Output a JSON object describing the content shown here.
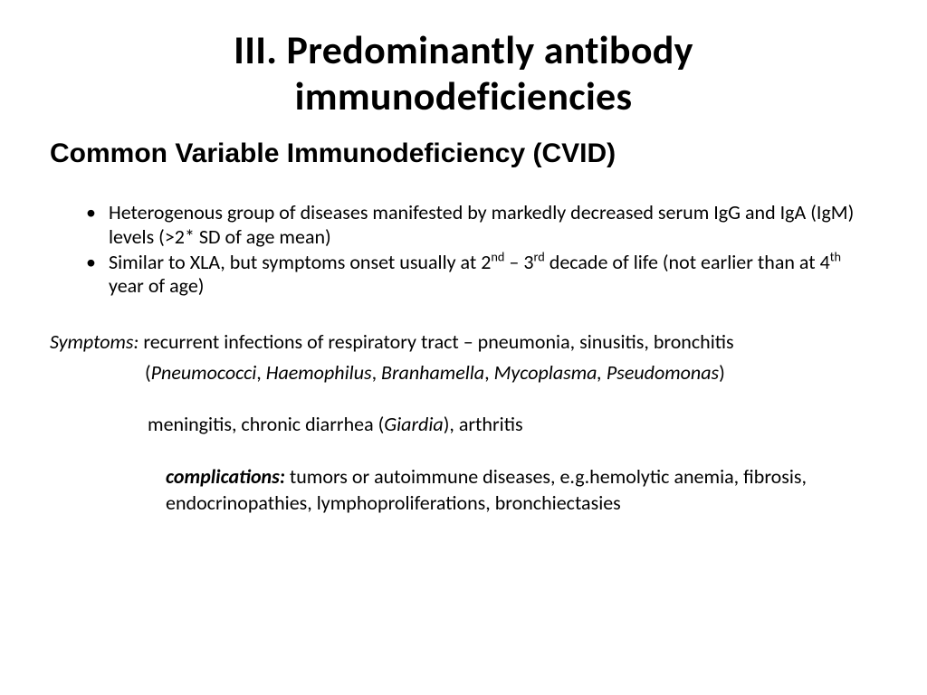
{
  "slide": {
    "title_line1": "III. Predominantly antibody",
    "title_line2": "immunodeficiencies",
    "subtitle": "Common Variable Immunodeficiency (CVID)",
    "bullet1_part1": "Heterogenous group of diseases manifested by markedly decreased serum IgG and IgA (IgM) levels (>2* SD of age mean)",
    "bullet2_pre": "Similar to XLA, but symptoms onset usually at 2",
    "bullet2_sup1": "nd",
    "bullet2_mid1": " – 3",
    "bullet2_sup2": "rd",
    "bullet2_mid2": " decade of life (not earlier than at 4",
    "bullet2_sup3": "th",
    "bullet2_end": " year of age)",
    "symptoms_label": "Symptoms:",
    "symptoms_text": " recurrent infections of respiratory tract – pneumonia, sinusitis, bronchitis",
    "pathogens_open": "(",
    "pathogen1": "Pneumococci",
    "pathogen_sep1": ", ",
    "pathogen2": "Haemophilus",
    "pathogen_sep2": ", ",
    "pathogen3": "Branhamella",
    "pathogen_sep3": ", ",
    "pathogen4": "Mycoplasma, Pseudomonas",
    "pathogens_close": ")",
    "meningitis_pre": "meningitis, chronic diarrhea (",
    "meningitis_italic": "Giardia",
    "meningitis_post": "), arthritis",
    "complications_label": "complications:",
    "complications_text": " tumors or autoimmune diseases, e.g.hemolytic anemia, fibrosis, endocrinopathies, lymphoproliferations, bronchiectasies"
  },
  "style": {
    "background_color": "#ffffff",
    "text_color": "#000000",
    "title_fontsize": 44,
    "subtitle_fontsize": 30,
    "body_fontsize": 22,
    "font_family": "Calibri"
  }
}
